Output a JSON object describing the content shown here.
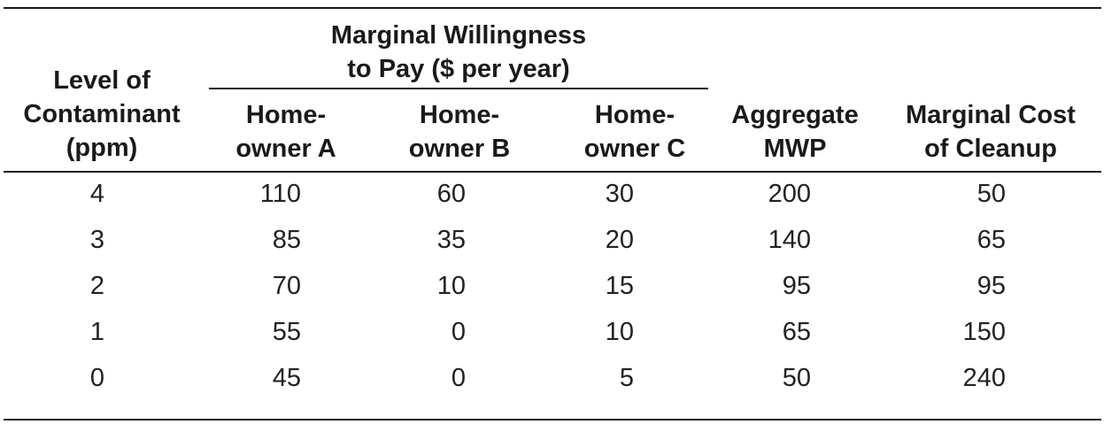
{
  "table": {
    "headers": {
      "group": "Marginal Willingness\nto Pay ($ per year)",
      "level": "Level of\nContaminant\n(ppm)",
      "homeowner_a": "Home-\nowner A",
      "homeowner_b": "Home-\nowner B",
      "homeowner_c": "Home-\nowner C",
      "aggregate": "Aggregate\nMWP",
      "marginal_cost": "Marginal Cost\nof Cleanup"
    },
    "rows": [
      {
        "level": "4",
        "a": "110",
        "b": "60",
        "c": "30",
        "aggregate": "200",
        "cost": "50"
      },
      {
        "level": "3",
        "a": "85",
        "b": "35",
        "c": "20",
        "aggregate": "140",
        "cost": "65"
      },
      {
        "level": "2",
        "a": "70",
        "b": "10",
        "c": "15",
        "aggregate": "95",
        "cost": "95"
      },
      {
        "level": "1",
        "a": "55",
        "b": "0",
        "c": "10",
        "aggregate": "65",
        "cost": "150"
      },
      {
        "level": "0",
        "a": "45",
        "b": "0",
        "c": "5",
        "aggregate": "50",
        "cost": "240"
      }
    ]
  }
}
